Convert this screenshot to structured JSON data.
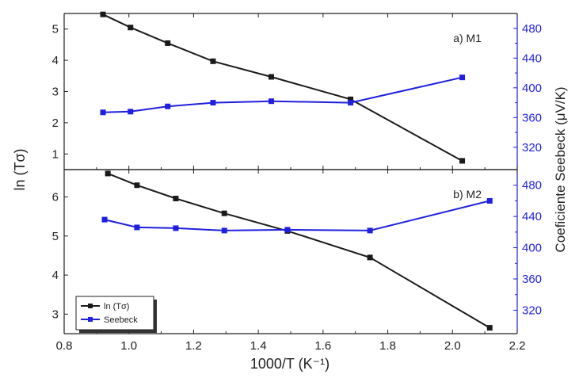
{
  "figure": {
    "ylabel_left": "ln (Tσ)",
    "ylabel_right": "Coeficiente Seebeck (μV/K)"
  },
  "colors": {
    "ln": "#1a1a1a",
    "seebeck": "#1f1fe0",
    "axis": "#222222",
    "right_axis": "#1f1fe0"
  },
  "legend": {
    "entries": [
      "ln (Tσ)",
      "Seebeck"
    ]
  },
  "chart_data": [
    {
      "type": "line",
      "panel_label": "a) M1",
      "xlim": [
        0.8,
        2.2
      ],
      "x_ticks": [
        0.8,
        1.0,
        1.2,
        1.4,
        1.6,
        1.8,
        2.0,
        2.2
      ],
      "ylim_left": [
        0.5,
        5.5
      ],
      "y_ticks_left": [
        1,
        2,
        3,
        4,
        5
      ],
      "ylim_right": [
        290,
        500
      ],
      "y_ticks_right": [
        320,
        360,
        400,
        440,
        480
      ],
      "series": [
        {
          "name": "ln (Tσ)",
          "axis": "left",
          "x": [
            0.92,
            1.005,
            1.12,
            1.26,
            1.44,
            1.685,
            2.03
          ],
          "y": [
            5.47,
            5.05,
            4.55,
            3.97,
            3.47,
            2.75,
            0.78
          ]
        },
        {
          "name": "Seebeck",
          "axis": "right",
          "x": [
            0.92,
            1.005,
            1.12,
            1.26,
            1.44,
            1.685,
            2.03
          ],
          "y": [
            367,
            368,
            375,
            380,
            382,
            380,
            414
          ]
        }
      ]
    },
    {
      "type": "line",
      "panel_label": "b) M2",
      "xlim": [
        0.8,
        2.2
      ],
      "x_ticks": [
        0.8,
        1.0,
        1.2,
        1.4,
        1.6,
        1.8,
        2.0,
        2.2
      ],
      "xlabel": "1000/T (K⁻¹)",
      "ylim_left": [
        2.5,
        6.7
      ],
      "y_ticks_left": [
        3,
        4,
        5,
        6
      ],
      "ylim_right": [
        290,
        500
      ],
      "y_ticks_right": [
        320,
        360,
        400,
        440,
        480
      ],
      "series": [
        {
          "name": "ln (Tσ)",
          "axis": "left",
          "x": [
            0.935,
            1.025,
            1.145,
            1.295,
            1.49,
            1.745,
            2.115
          ],
          "y": [
            6.6,
            6.3,
            5.96,
            5.58,
            5.13,
            4.45,
            2.65
          ]
        },
        {
          "name": "Seebeck",
          "axis": "right",
          "x": [
            0.925,
            1.025,
            1.145,
            1.295,
            1.49,
            1.745,
            2.115
          ],
          "y": [
            436,
            426,
            425,
            422,
            423,
            422,
            460
          ]
        }
      ]
    }
  ]
}
